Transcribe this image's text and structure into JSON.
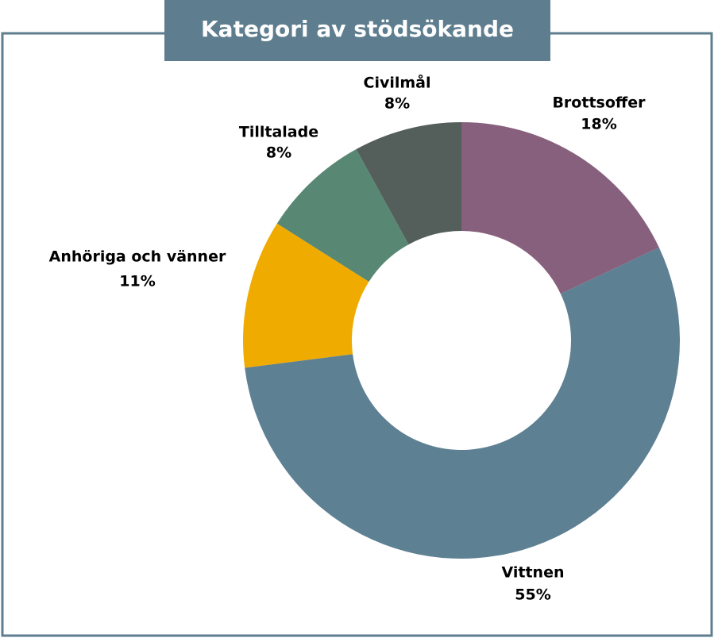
{
  "chart_data": {
    "type": "donut",
    "title": "Kategori av stödsökande",
    "categories": [
      "Brottsoffer",
      "Vittnen",
      "Anhöriga och vänner",
      "Tilltalade",
      "Civilmål"
    ],
    "values": [
      18,
      55,
      11,
      8,
      8
    ],
    "value_labels": [
      "18%",
      "55%",
      "11%",
      "8%",
      "8%"
    ],
    "colors": [
      "#87607d",
      "#5e8093",
      "#f0ab00",
      "#588873",
      "#545e5b"
    ]
  }
}
